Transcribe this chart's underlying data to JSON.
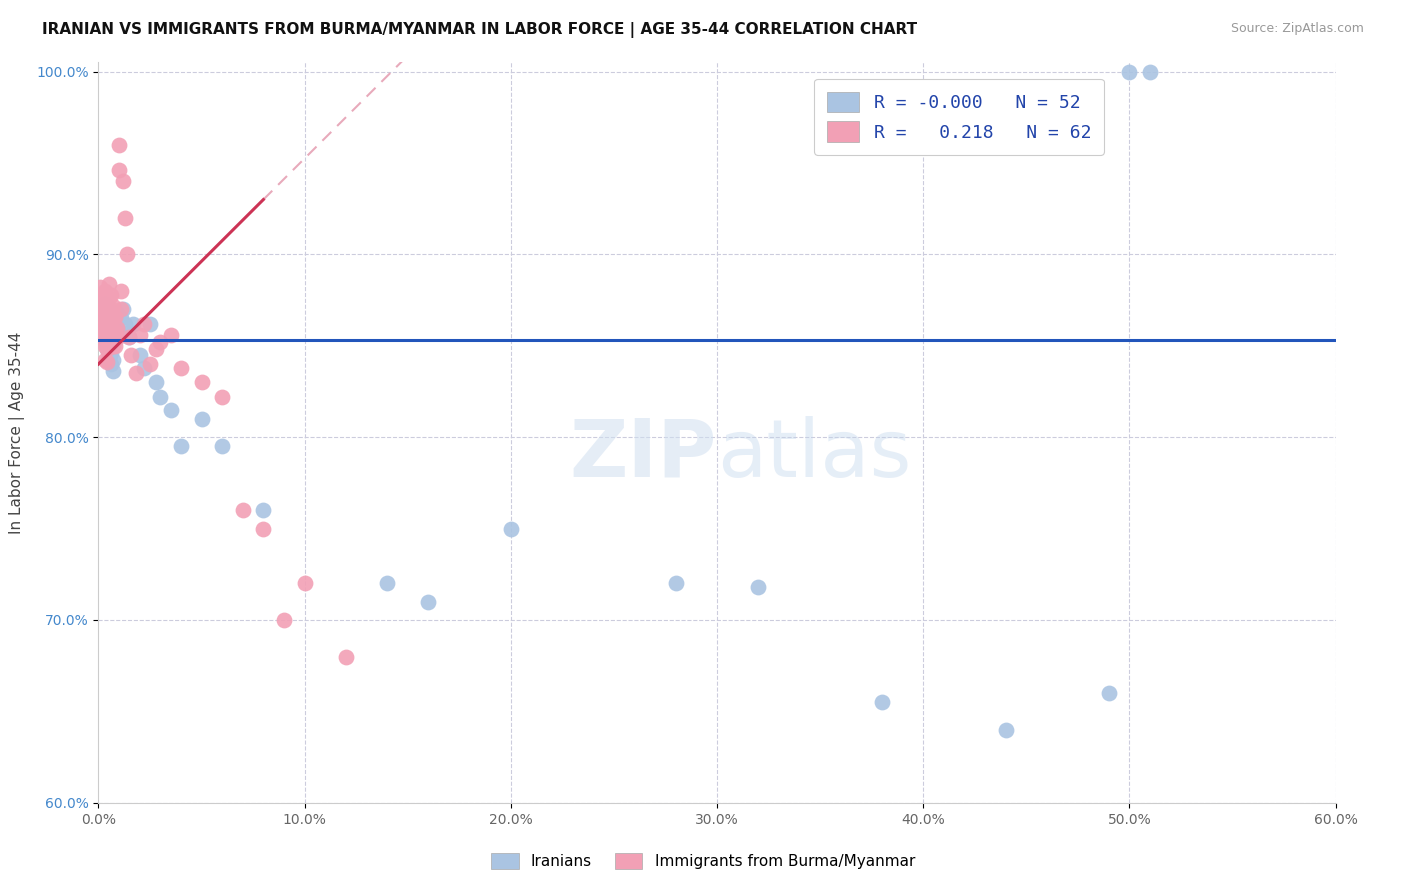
{
  "title": "IRANIAN VS IMMIGRANTS FROM BURMA/MYANMAR IN LABOR FORCE | AGE 35-44 CORRELATION CHART",
  "source": "Source: ZipAtlas.com",
  "ylabel": "In Labor Force | Age 35-44",
  "xlim": [
    0.0,
    0.6
  ],
  "ylim": [
    0.6,
    1.005
  ],
  "xticks": [
    0.0,
    0.1,
    0.2,
    0.3,
    0.4,
    0.5,
    0.6
  ],
  "xtick_labels": [
    "0.0%",
    "10.0%",
    "20.0%",
    "30.0%",
    "40.0%",
    "50.0%",
    "60.0%"
  ],
  "yticks": [
    0.6,
    0.7,
    0.8,
    0.9,
    1.0
  ],
  "ytick_labels": [
    "60.0%",
    "70.0%",
    "80.0%",
    "90.0%",
    "100.0%"
  ],
  "blue_color": "#aac4e2",
  "pink_color": "#f2a0b5",
  "blue_edge_color": "#aac4e2",
  "pink_edge_color": "#f2a0b5",
  "blue_line_color": "#2255bb",
  "pink_line_color": "#cc3355",
  "diag_line_color": "#e8aabb",
  "legend_R_blue": "-0.000",
  "legend_N_blue": "52",
  "legend_R_pink": "0.218",
  "legend_N_pink": "62",
  "watermark_zip": "ZIP",
  "watermark_atlas": "atlas",
  "blue_trend_y": 0.853,
  "pink_trend_x0": 0.0,
  "pink_trend_y0": 0.84,
  "pink_trend_x1": 0.08,
  "pink_trend_y1": 0.93,
  "iranians_x": [
    0.001,
    0.001,
    0.002,
    0.002,
    0.003,
    0.003,
    0.003,
    0.003,
    0.004,
    0.004,
    0.004,
    0.004,
    0.004,
    0.005,
    0.005,
    0.005,
    0.005,
    0.006,
    0.006,
    0.006,
    0.006,
    0.007,
    0.007,
    0.008,
    0.008,
    0.009,
    0.01,
    0.011,
    0.012,
    0.013,
    0.015,
    0.017,
    0.02,
    0.022,
    0.025,
    0.028,
    0.03,
    0.035,
    0.04,
    0.05,
    0.06,
    0.08,
    0.14,
    0.16,
    0.2,
    0.28,
    0.32,
    0.38,
    0.44,
    0.49,
    0.5,
    0.51
  ],
  "iranians_y": [
    0.855,
    0.862,
    0.858,
    0.87,
    0.852,
    0.856,
    0.865,
    0.873,
    0.848,
    0.854,
    0.86,
    0.866,
    0.872,
    0.844,
    0.85,
    0.856,
    0.862,
    0.84,
    0.846,
    0.852,
    0.858,
    0.836,
    0.842,
    0.856,
    0.862,
    0.868,
    0.858,
    0.865,
    0.87,
    0.862,
    0.855,
    0.862,
    0.845,
    0.838,
    0.862,
    0.83,
    0.822,
    0.815,
    0.795,
    0.81,
    0.795,
    0.76,
    0.72,
    0.71,
    0.75,
    0.72,
    0.718,
    0.655,
    0.64,
    0.66,
    1.0,
    1.0
  ],
  "burma_x": [
    0.001,
    0.001,
    0.001,
    0.001,
    0.002,
    0.002,
    0.002,
    0.002,
    0.003,
    0.003,
    0.003,
    0.003,
    0.003,
    0.003,
    0.004,
    0.004,
    0.004,
    0.004,
    0.004,
    0.005,
    0.005,
    0.005,
    0.005,
    0.005,
    0.006,
    0.006,
    0.006,
    0.006,
    0.006,
    0.007,
    0.007,
    0.007,
    0.007,
    0.008,
    0.008,
    0.008,
    0.009,
    0.009,
    0.01,
    0.01,
    0.011,
    0.011,
    0.012,
    0.013,
    0.014,
    0.015,
    0.016,
    0.018,
    0.02,
    0.022,
    0.025,
    0.028,
    0.03,
    0.035,
    0.04,
    0.05,
    0.06,
    0.07,
    0.08,
    0.09,
    0.1,
    0.12
  ],
  "burma_y": [
    0.875,
    0.882,
    0.866,
    0.858,
    0.878,
    0.87,
    0.862,
    0.854,
    0.88,
    0.872,
    0.865,
    0.858,
    0.85,
    0.842,
    0.87,
    0.862,
    0.855,
    0.848,
    0.841,
    0.884,
    0.876,
    0.869,
    0.862,
    0.855,
    0.878,
    0.87,
    0.863,
    0.856,
    0.85,
    0.872,
    0.865,
    0.858,
    0.85,
    0.866,
    0.858,
    0.85,
    0.86,
    0.854,
    0.946,
    0.96,
    0.88,
    0.87,
    0.94,
    0.92,
    0.9,
    0.855,
    0.845,
    0.835,
    0.856,
    0.862,
    0.84,
    0.848,
    0.852,
    0.856,
    0.838,
    0.83,
    0.822,
    0.76,
    0.75,
    0.7,
    0.72,
    0.68
  ]
}
